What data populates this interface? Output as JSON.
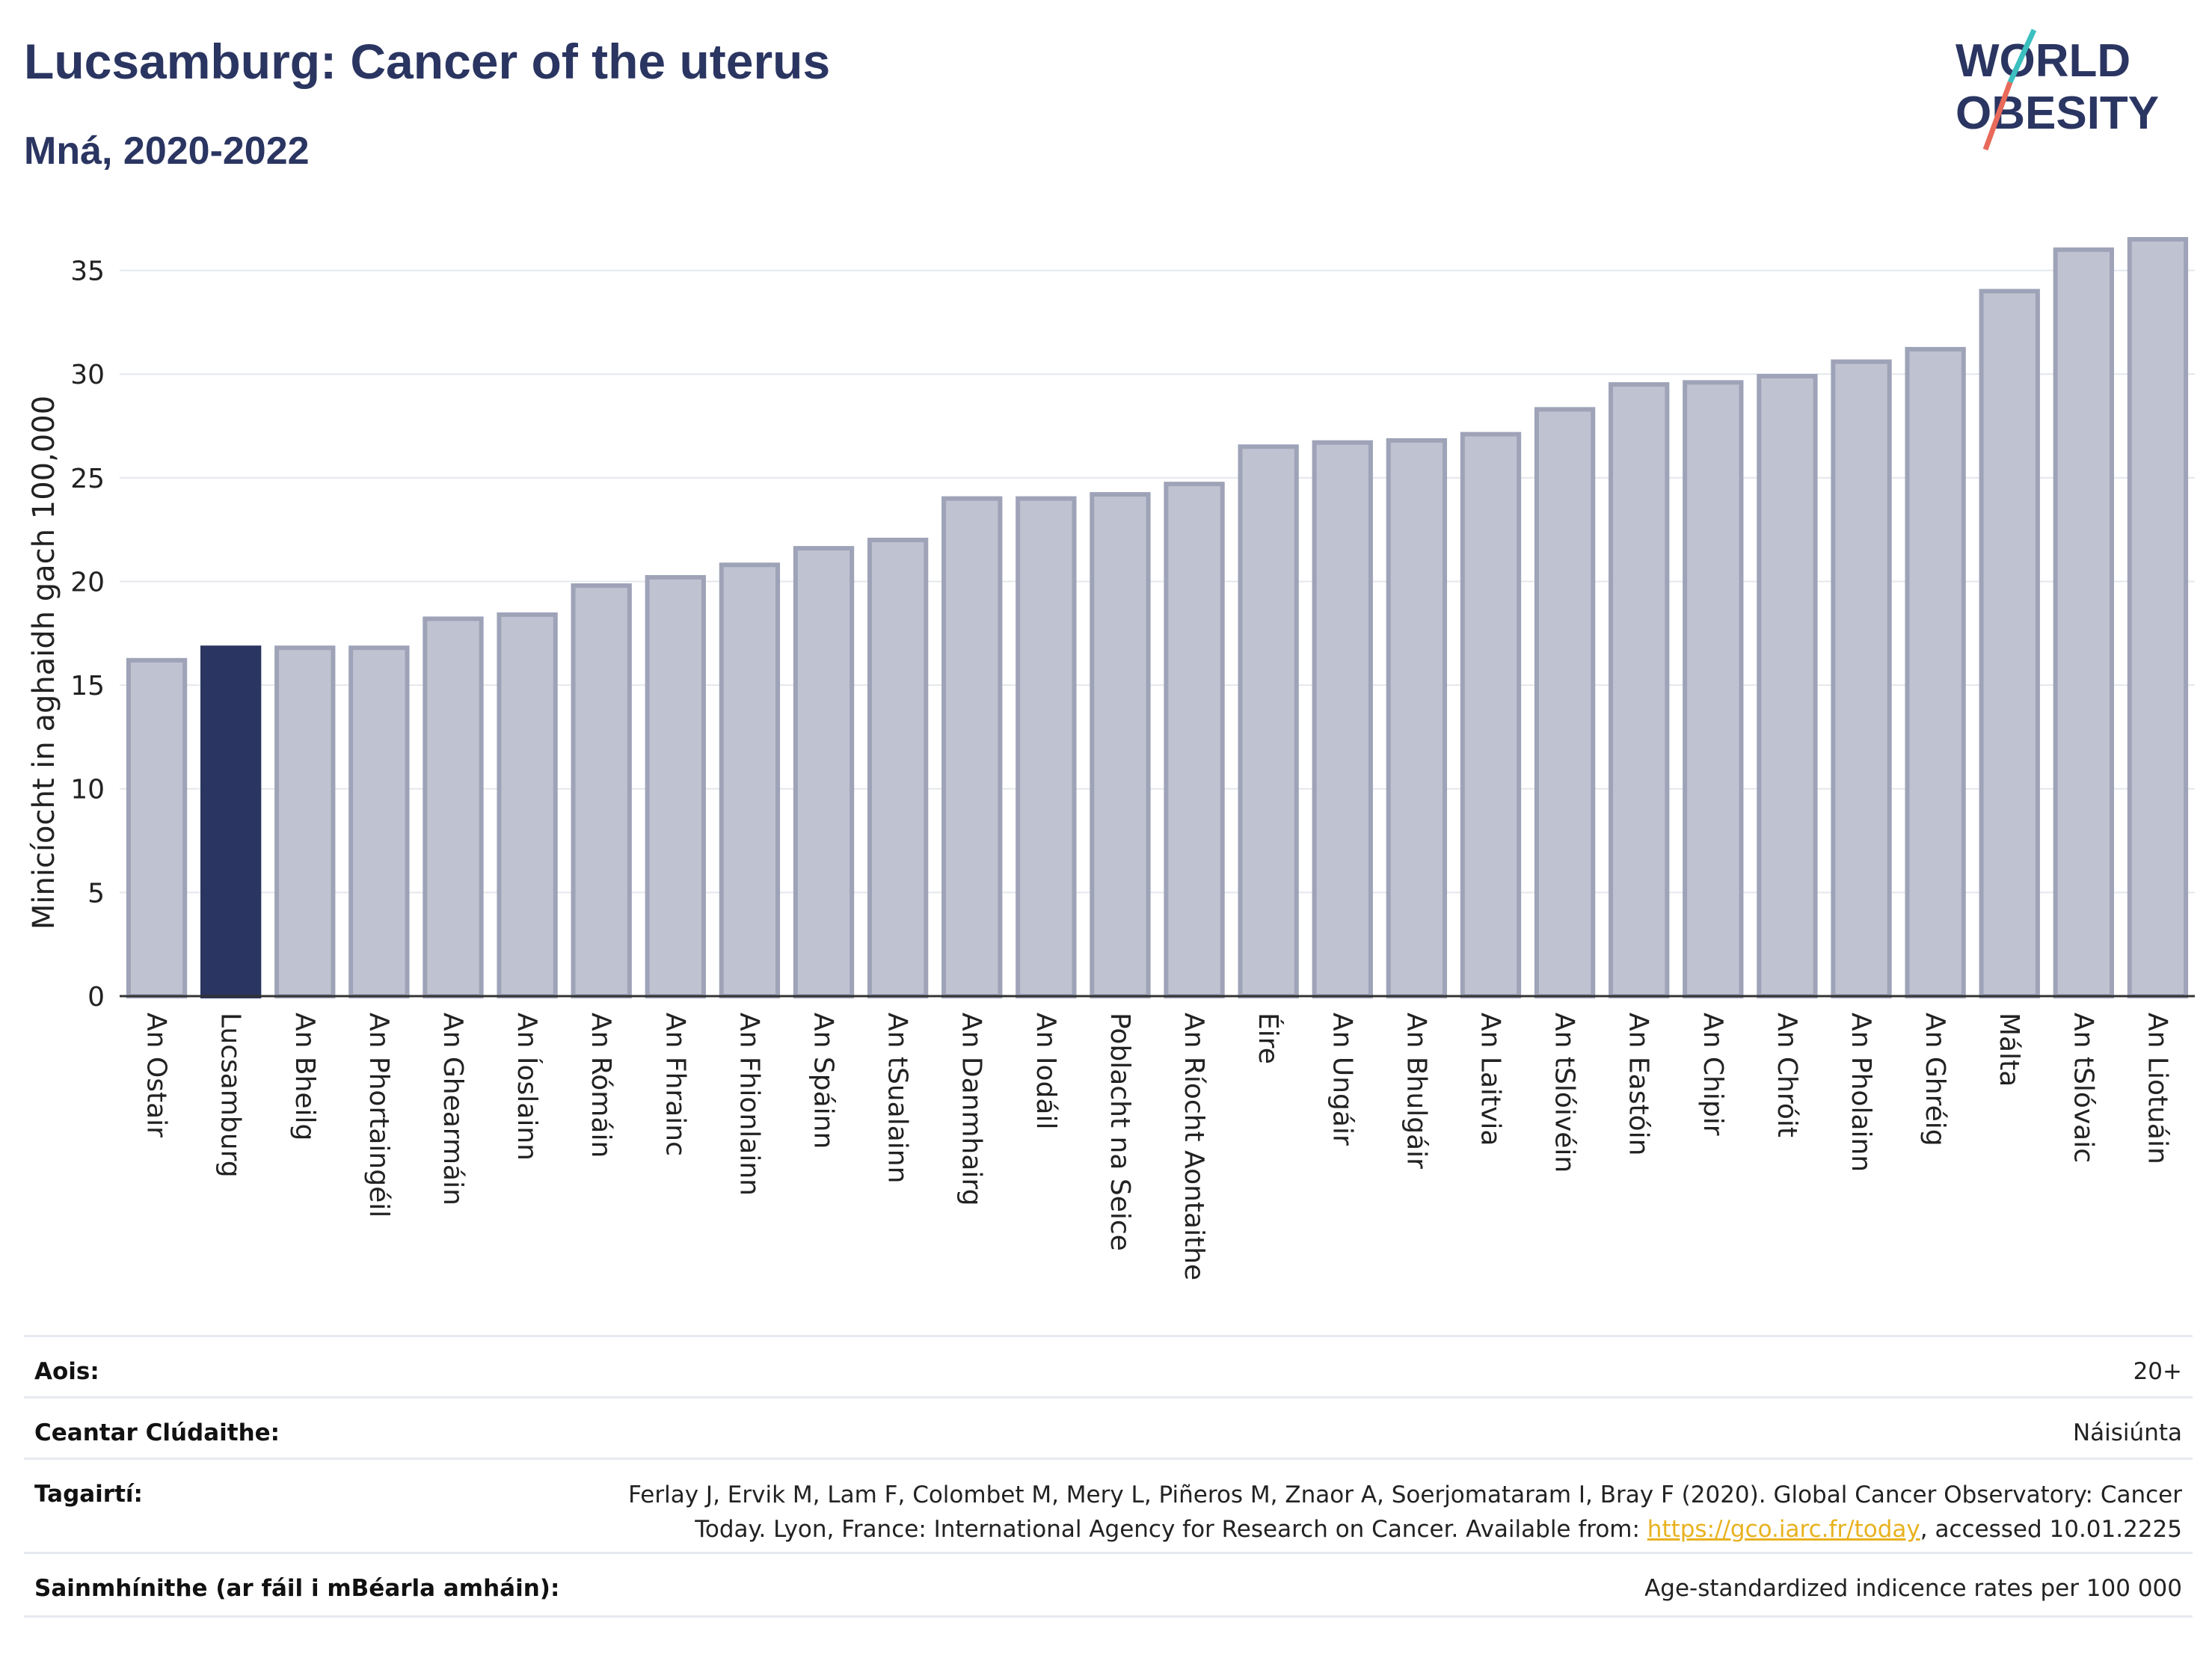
{
  "header": {
    "title": "Lucsamburg: Cancer of the uterus",
    "subtitle": "Mná, 2020-2022"
  },
  "logo": {
    "line1": "WORLD",
    "line2": "OBESITY"
  },
  "colors": {
    "title": "#2a3561",
    "bar_default": "#bfc3d1",
    "bar_default_stroke": "#9ea3b8",
    "bar_highlight": "#2a3561",
    "logo_slash_teal": "#3bbfbf",
    "logo_slash_red": "#e86a5a",
    "link": "#e8b21f"
  },
  "chart_data": {
    "type": "bar",
    "title": "Lucsamburg: Cancer of the uterus",
    "subtitle": "Mná, 2020-2022",
    "xlabel": "",
    "ylabel": "Minicíocht in aghaidh gach 100,000",
    "ylim": [
      0,
      36.5
    ],
    "yticks": [
      0,
      5,
      10,
      15,
      20,
      25,
      30,
      35
    ],
    "grid": true,
    "highlight": "Lucsamburg",
    "categories": [
      "An Ostair",
      "Lucsamburg",
      "An Bheilg",
      "An Phortaingéil",
      "An Ghearmáin",
      "An Íoslainn",
      "An Rómáin",
      "An Fhrainc",
      "An Fhionlainn",
      "An Spáinn",
      "An tSualainn",
      "An Danmhairg",
      "An Iodáil",
      "Poblacht na Seice",
      "An Ríocht Aontaithe",
      "Éire",
      "An Ungáir",
      "An Bhulgáir",
      "An Laitvia",
      "An tSlóivéin",
      "An Eastóin",
      "An Chipir",
      "An Chróit",
      "An Pholainn",
      "An Ghréig",
      "Málta",
      "An tSlóvaic",
      "An Liotuáin"
    ],
    "values": [
      16.2,
      16.8,
      16.8,
      16.8,
      18.2,
      18.4,
      19.8,
      20.2,
      20.8,
      21.6,
      22.0,
      24.0,
      24.0,
      24.2,
      24.7,
      26.5,
      26.7,
      26.8,
      27.1,
      28.3,
      29.5,
      29.6,
      29.9,
      30.6,
      31.2,
      34.0,
      36.0,
      36.5
    ]
  },
  "info": {
    "rows": [
      {
        "key": "Aois:",
        "value": "20+"
      },
      {
        "key": "Ceantar Clúdaithe:",
        "value": "Náisiúnta"
      },
      {
        "key": "Tagairtí:",
        "value_line1": "Ferlay J, Ervik M, Lam F, Colombet M, Mery L, Piñeros M, Znaor A, Soerjomataram I, Bray F (2020). Global Cancer Observatory: Cancer",
        "value_line2_pre": "Today. Lyon, France: International Agency for Research on Cancer. Available from: ",
        "link": "https://gco.iarc.fr/today",
        "value_line2_post": ", accessed 10.01.2225"
      },
      {
        "key": "Sainmhínithe (ar fáil i mBéarla amháin):",
        "value": "Age-standardized indicence rates per 100 000"
      }
    ]
  }
}
